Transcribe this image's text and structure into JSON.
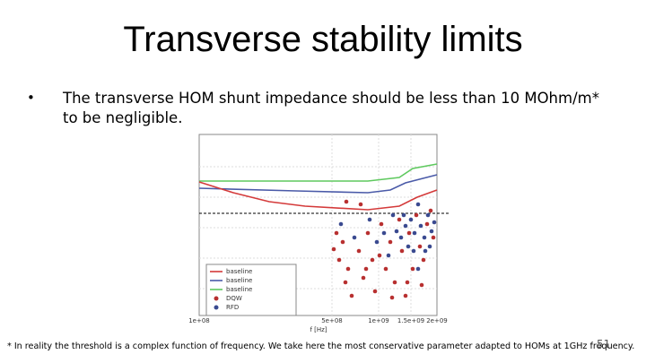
{
  "slide": {
    "title": "Transverse stability limits",
    "bullet": "The transverse HOM shunt impedance should be less than 10 MOhm/m* to be negligible.",
    "figure": {
      "x_label": "f [Hz]",
      "x_ticks": [
        "1e+08",
        "5e+08",
        "1e+09",
        "1.5e+09",
        "2e+09"
      ],
      "legend": [
        "baseline",
        "baseline",
        "baseline",
        "DQW",
        "RFD"
      ]
    },
    "footnote": "* In reality the threshold is a complex function of frequency. We take here the most conservative parameter adapted to HOMs at 1GHz frequency.",
    "page_number": "51"
  }
}
